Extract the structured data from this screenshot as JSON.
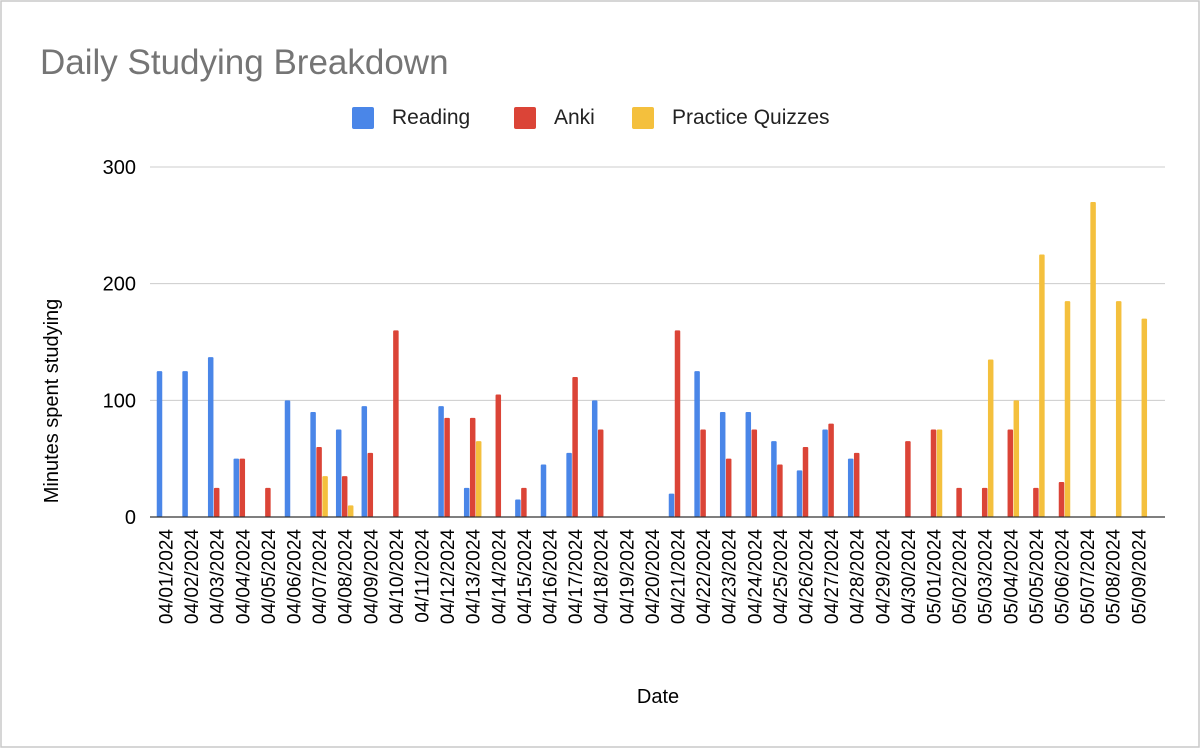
{
  "chart_data": {
    "type": "bar",
    "title": "Daily Studying Breakdown",
    "xlabel": "Date",
    "ylabel": "Minutes spent studying",
    "ylim": [
      0,
      300
    ],
    "yticks": [
      0,
      100,
      200,
      300
    ],
    "grid": true,
    "legend_position": "top",
    "categories": [
      "04/01/2024",
      "04/02/2024",
      "04/03/2024",
      "04/04/2024",
      "04/05/2024",
      "04/06/2024",
      "04/07/2024",
      "04/08/2024",
      "04/09/2024",
      "04/10/2024",
      "04/11/2024",
      "04/12/2024",
      "04/13/2024",
      "04/14/2024",
      "04/15/2024",
      "04/16/2024",
      "04/17/2024",
      "04/18/2024",
      "04/19/2024",
      "04/20/2024",
      "04/21/2024",
      "04/22/2024",
      "04/23/2024",
      "04/24/2024",
      "04/25/2024",
      "04/26/2024",
      "04/27/2024",
      "04/28/2024",
      "04/29/2024",
      "04/30/2024",
      "05/01/2024",
      "05/02/2024",
      "05/03/2024",
      "05/04/2024",
      "05/05/2024",
      "05/06/2024",
      "05/07/2024",
      "05/08/2024",
      "05/09/2024"
    ],
    "series": [
      {
        "name": "Reading",
        "color": "#4a86e8",
        "values": [
          125,
          125,
          137,
          50,
          0,
          100,
          90,
          75,
          95,
          0,
          0,
          95,
          25,
          0,
          15,
          45,
          55,
          100,
          0,
          0,
          20,
          125,
          90,
          90,
          65,
          40,
          75,
          50,
          0,
          0,
          0,
          0,
          0,
          0,
          0,
          0,
          0,
          0,
          0
        ]
      },
      {
        "name": "Anki",
        "color": "#db4437",
        "values": [
          0,
          0,
          25,
          50,
          25,
          0,
          60,
          35,
          55,
          160,
          0,
          85,
          85,
          105,
          25,
          0,
          120,
          75,
          0,
          0,
          160,
          75,
          50,
          75,
          45,
          60,
          80,
          55,
          0,
          65,
          75,
          25,
          25,
          75,
          25,
          30,
          0,
          0,
          0
        ]
      },
      {
        "name": "Practice Quizzes",
        "color": "#f4c03d",
        "values": [
          0,
          0,
          0,
          0,
          0,
          0,
          35,
          10,
          0,
          0,
          0,
          0,
          65,
          0,
          0,
          0,
          0,
          0,
          0,
          0,
          0,
          0,
          0,
          0,
          0,
          0,
          0,
          0,
          0,
          0,
          75,
          0,
          135,
          100,
          225,
          185,
          270,
          185,
          170
        ]
      }
    ]
  }
}
